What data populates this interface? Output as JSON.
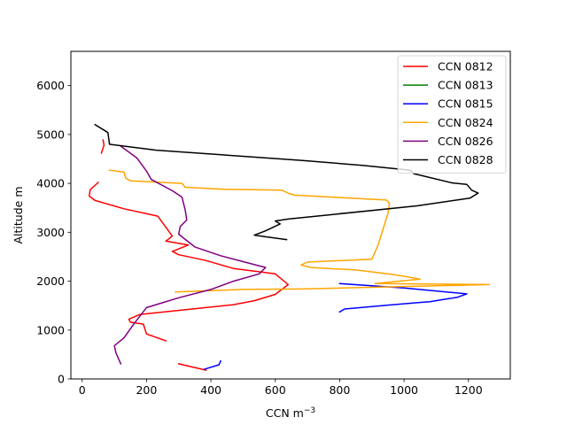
{
  "chart_data": {
    "type": "line",
    "title": "",
    "xlabel": "CCN m",
    "xlabel_sup": "−3",
    "ylabel": "Altitude m",
    "xlim": [
      -35,
      1330
    ],
    "ylim": [
      0,
      6700
    ],
    "xticks": [
      0,
      200,
      400,
      600,
      800,
      1000,
      1200
    ],
    "yticks": [
      0,
      1000,
      2000,
      3000,
      4000,
      5000,
      6000
    ],
    "grid": false,
    "legend_position": "top-right",
    "series": [
      {
        "name": "CCN 0812",
        "color": "#ff0000",
        "segments": [
          [
            [
              65,
              4890
            ],
            [
              68,
              4780
            ],
            [
              60,
              4620
            ]
          ],
          [
            [
              50,
              4020
            ],
            [
              25,
              3870
            ],
            [
              22,
              3740
            ],
            [
              40,
              3650
            ],
            [
              130,
              3480
            ],
            [
              235,
              3330
            ],
            [
              280,
              2920
            ],
            [
              260,
              2820
            ],
            [
              330,
              2740
            ],
            [
              280,
              2610
            ],
            [
              300,
              2540
            ],
            [
              380,
              2430
            ],
            [
              470,
              2260
            ],
            [
              600,
              2150
            ],
            [
              640,
              1930
            ],
            [
              600,
              1730
            ],
            [
              535,
              1600
            ],
            [
              470,
              1520
            ],
            [
              180,
              1320
            ],
            [
              145,
              1220
            ],
            [
              150,
              1160
            ],
            [
              190,
              1120
            ],
            [
              200,
              920
            ],
            [
              260,
              780
            ]
          ],
          [
            [
              300,
              310
            ],
            [
              385,
              180
            ]
          ]
        ]
      },
      {
        "name": "CCN 0813",
        "color": "#008000",
        "segments": []
      },
      {
        "name": "CCN 0815",
        "color": "#0000ff",
        "segments": [
          [
            [
              800,
              1950
            ],
            [
              1000,
              1860
            ],
            [
              1195,
              1740
            ],
            [
              1165,
              1670
            ],
            [
              1080,
              1580
            ],
            [
              1040,
              1560
            ],
            [
              950,
              1510
            ],
            [
              815,
              1430
            ],
            [
              800,
              1370
            ]
          ],
          [
            [
              430,
              370
            ],
            [
              425,
              290
            ],
            [
              380,
              200
            ]
          ]
        ]
      },
      {
        "name": "CCN 0824",
        "color": "#ffa500",
        "segments": [
          [
            [
              85,
              4270
            ],
            [
              130,
              4230
            ],
            [
              135,
              4110
            ],
            [
              150,
              4050
            ],
            [
              310,
              4000
            ],
            [
              320,
              3920
            ],
            [
              440,
              3880
            ],
            [
              620,
              3860
            ],
            [
              640,
              3800
            ],
            [
              660,
              3760
            ],
            [
              945,
              3660
            ],
            [
              955,
              3590
            ],
            [
              950,
              3390
            ],
            [
              920,
              2750
            ],
            [
              900,
              2450
            ],
            [
              700,
              2390
            ],
            [
              680,
              2330
            ],
            [
              710,
              2280
            ],
            [
              850,
              2230
            ],
            [
              960,
              2140
            ],
            [
              1010,
              2090
            ],
            [
              1050,
              2040
            ],
            [
              910,
              1950
            ],
            [
              1265,
              1930
            ],
            [
              680,
              1840
            ],
            [
              500,
              1830
            ],
            [
              290,
              1780
            ]
          ]
        ]
      },
      {
        "name": "CCN 0826",
        "color": "#800080",
        "segments": [
          [
            [
              120,
              4760
            ],
            [
              170,
              4520
            ],
            [
              200,
              4250
            ],
            [
              215,
              4080
            ],
            [
              280,
              3850
            ],
            [
              310,
              3720
            ],
            [
              320,
              3460
            ],
            [
              325,
              3250
            ],
            [
              305,
              3120
            ],
            [
              300,
              2960
            ],
            [
              350,
              2700
            ],
            [
              430,
              2520
            ],
            [
              500,
              2400
            ],
            [
              570,
              2280
            ],
            [
              550,
              2150
            ],
            [
              470,
              2000
            ],
            [
              400,
              1830
            ],
            [
              300,
              1660
            ],
            [
              250,
              1560
            ],
            [
              200,
              1460
            ],
            [
              160,
              1120
            ],
            [
              130,
              840
            ],
            [
              100,
              680
            ],
            [
              105,
              530
            ],
            [
              120,
              310
            ]
          ]
        ]
      },
      {
        "name": "CCN 0828",
        "color": "#000000",
        "segments": [
          [
            [
              40,
              5200
            ],
            [
              80,
              5040
            ],
            [
              85,
              4800
            ],
            [
              230,
              4680
            ],
            [
              680,
              4470
            ],
            [
              870,
              4370
            ],
            [
              1020,
              4270
            ],
            [
              1030,
              4200
            ],
            [
              1150,
              4010
            ],
            [
              1195,
              3980
            ],
            [
              1210,
              3860
            ],
            [
              1230,
              3800
            ],
            [
              1205,
              3700
            ],
            [
              1040,
              3540
            ],
            [
              640,
              3270
            ],
            [
              600,
              3230
            ],
            [
              615,
              3170
            ],
            [
              570,
              3030
            ],
            [
              535,
              2940
            ],
            [
              635,
              2850
            ]
          ]
        ]
      }
    ]
  }
}
